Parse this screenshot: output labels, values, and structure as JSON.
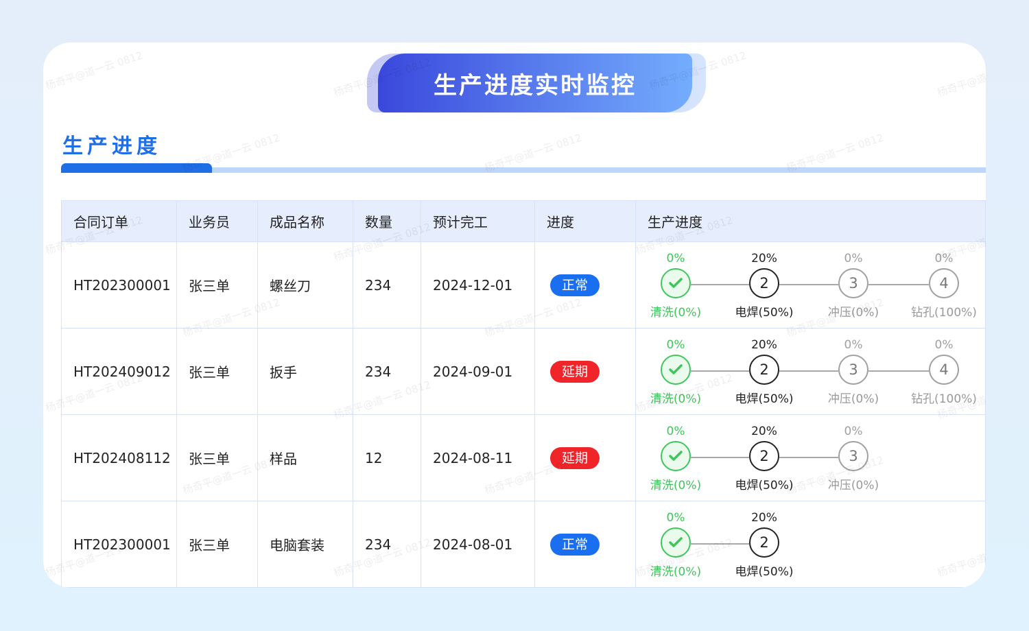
{
  "header": {
    "title": "生产进度实时监控"
  },
  "section": {
    "title": "生产进度"
  },
  "watermark": "杨奇平@道一云 0812",
  "colors": {
    "accent": "#1f6ee6",
    "normal": "#1a6ff0",
    "delayed": "#f0252a",
    "done": "#3ec65a",
    "active": "#222222",
    "pending": "#a0a0a0"
  },
  "table": {
    "columns": [
      "合同订单",
      "业务员",
      "成品名称",
      "数量",
      "预计完工",
      "进度",
      "生产进度"
    ],
    "rows": [
      {
        "order": "HT202300001",
        "sales": "张三单",
        "product": "螺丝刀",
        "qty": "234",
        "due": "2024-12-01",
        "status": "正常",
        "status_type": "normal",
        "steps": [
          {
            "pct": "0%",
            "label": "清洗(0%)",
            "state": "done",
            "num": "1"
          },
          {
            "pct": "20%",
            "label": "电焊(50%)",
            "state": "active",
            "num": "2"
          },
          {
            "pct": "0%",
            "label": "冲压(0%)",
            "state": "pending",
            "num": "3"
          },
          {
            "pct": "0%",
            "label": "钻孔(100%)",
            "state": "pending",
            "num": "4"
          }
        ]
      },
      {
        "order": "HT202409012",
        "sales": "张三单",
        "product": "扳手",
        "qty": "234",
        "due": "2024-09-01",
        "status": "延期",
        "status_type": "delayed",
        "steps": [
          {
            "pct": "0%",
            "label": "清洗(0%)",
            "state": "done",
            "num": "1"
          },
          {
            "pct": "20%",
            "label": "电焊(50%)",
            "state": "active",
            "num": "2"
          },
          {
            "pct": "0%",
            "label": "冲压(0%)",
            "state": "pending",
            "num": "3"
          },
          {
            "pct": "0%",
            "label": "钻孔(100%)",
            "state": "pending",
            "num": "4"
          }
        ]
      },
      {
        "order": "HT202408112",
        "sales": "张三单",
        "product": "样品",
        "qty": "12",
        "due": "2024-08-11",
        "status": "延期",
        "status_type": "delayed",
        "steps": [
          {
            "pct": "0%",
            "label": "清洗(0%)",
            "state": "done",
            "num": "1"
          },
          {
            "pct": "20%",
            "label": "电焊(50%)",
            "state": "active",
            "num": "2"
          },
          {
            "pct": "0%",
            "label": "冲压(0%)",
            "state": "pending",
            "num": "3"
          }
        ]
      },
      {
        "order": "HT202300001",
        "sales": "张三单",
        "product": "电脑套装",
        "qty": "234",
        "due": "2024-08-01",
        "status": "正常",
        "status_type": "normal",
        "steps": [
          {
            "pct": "0%",
            "label": "清洗(0%)",
            "state": "done",
            "num": "1"
          },
          {
            "pct": "20%",
            "label": "电焊(50%)",
            "state": "active",
            "num": "2"
          }
        ]
      }
    ]
  }
}
